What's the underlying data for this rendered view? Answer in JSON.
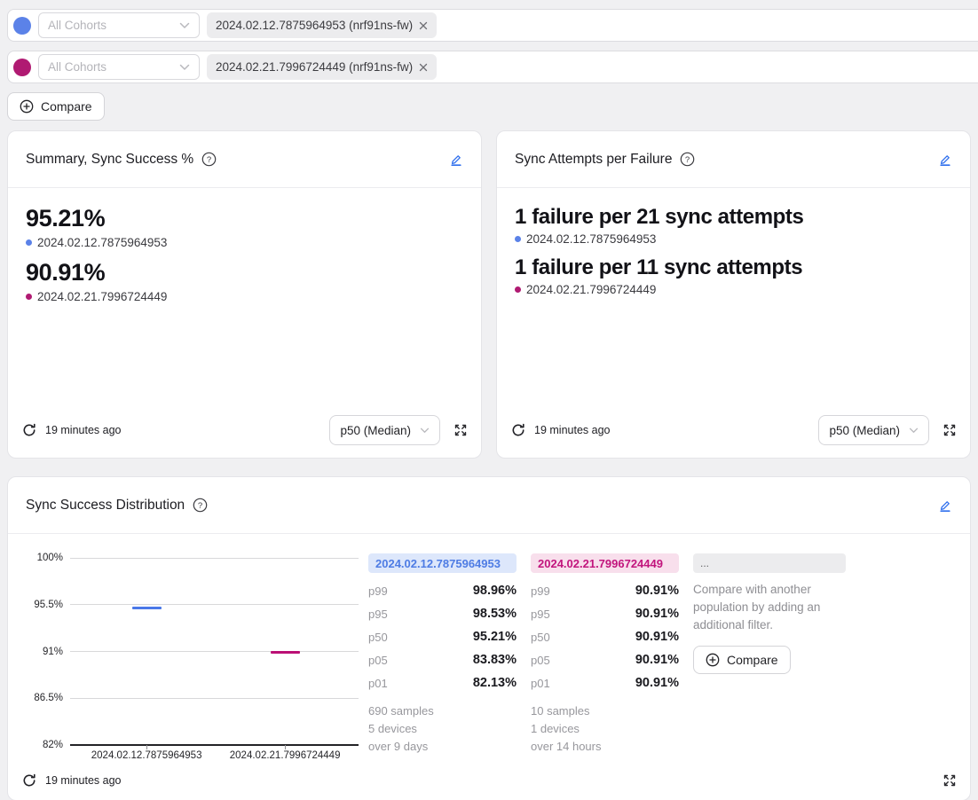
{
  "filters": {
    "rows": [
      {
        "color": "#5b82e8",
        "cohort_placeholder": "All Cohorts",
        "chip": "2024.02.12.7875964953 (nrf91ns-fw)"
      },
      {
        "color": "#b01a72",
        "cohort_placeholder": "All Cohorts",
        "chip": "2024.02.21.7996724449 (nrf91ns-fw)"
      }
    ],
    "compare_button": "Compare"
  },
  "cards": {
    "summary": {
      "title": "Summary, Sync Success %",
      "metrics": [
        {
          "value": "95.21%",
          "label": "2024.02.12.7875964953",
          "color": "#5b82e8"
        },
        {
          "value": "90.91%",
          "label": "2024.02.21.7996724449",
          "color": "#b01a72"
        }
      ],
      "updated": "19 minutes ago",
      "aggregation": "p50 (Median)"
    },
    "attempts": {
      "title": "Sync Attempts per Failure",
      "metrics": [
        {
          "value": "1 failure per 21 sync attempts",
          "label": "2024.02.12.7875964953",
          "color": "#5b82e8"
        },
        {
          "value": "1 failure per 11 sync attempts",
          "label": "2024.02.21.7996724449",
          "color": "#b01a72"
        }
      ],
      "updated": "19 minutes ago",
      "aggregation": "p50 (Median)"
    },
    "distribution": {
      "title": "Sync Success Distribution",
      "updated": "19 minutes ago",
      "tables": [
        {
          "header": "2024.02.12.7875964953",
          "header_color": "#4e7ce4",
          "header_bg": "#dde7fb",
          "rows": [
            {
              "label": "p99",
              "value": "98.96%"
            },
            {
              "label": "p95",
              "value": "98.53%"
            },
            {
              "label": "p50",
              "value": "95.21%"
            },
            {
              "label": "p05",
              "value": "83.83%"
            },
            {
              "label": "p01",
              "value": "82.13%"
            }
          ],
          "samples": [
            "690 samples",
            "5 devices",
            "over 9 days"
          ]
        },
        {
          "header": "2024.02.21.7996724449",
          "header_color": "#c2157d",
          "header_bg": "#f8dfec",
          "rows": [
            {
              "label": "p99",
              "value": "90.91%"
            },
            {
              "label": "p95",
              "value": "90.91%"
            },
            {
              "label": "p50",
              "value": "90.91%"
            },
            {
              "label": "p05",
              "value": "90.91%"
            },
            {
              "label": "p01",
              "value": "90.91%"
            }
          ],
          "samples": [
            "10 samples",
            "1 devices",
            "over 14 hours"
          ]
        }
      ],
      "compare_panel": {
        "chip": "...",
        "text": "Compare with another population by adding an additional filter.",
        "button": "Compare"
      }
    }
  },
  "chart_data": {
    "type": "boxplot",
    "title": "Sync Success Distribution",
    "categories": [
      "2024.02.12.7875964953",
      "2024.02.21.7996724449"
    ],
    "ylim": [
      82,
      100
    ],
    "yticks": [
      "100%",
      "95.5%",
      "91%",
      "86.5%",
      "82%"
    ],
    "ytick_values": [
      100,
      95.5,
      91,
      86.5,
      82
    ],
    "grid": true,
    "x_centers": [
      0.265,
      0.745
    ],
    "series": [
      {
        "name": "2024.02.12.7875964953",
        "color": "#4a78e8",
        "band_color": "#abc3f7",
        "outer_band_color": "#d8e2fb",
        "p01": 82.13,
        "p05": 83.83,
        "p50": 95.21,
        "p95": 98.53,
        "p99": 98.96
      },
      {
        "name": "2024.02.21.7996724449",
        "color": "#bb0f75",
        "band_color": "#f3c2dc",
        "outer_band_color": "#f8dfec",
        "p01": 90.91,
        "p05": 90.91,
        "p50": 90.91,
        "p95": 90.91,
        "p99": 90.91
      }
    ]
  }
}
